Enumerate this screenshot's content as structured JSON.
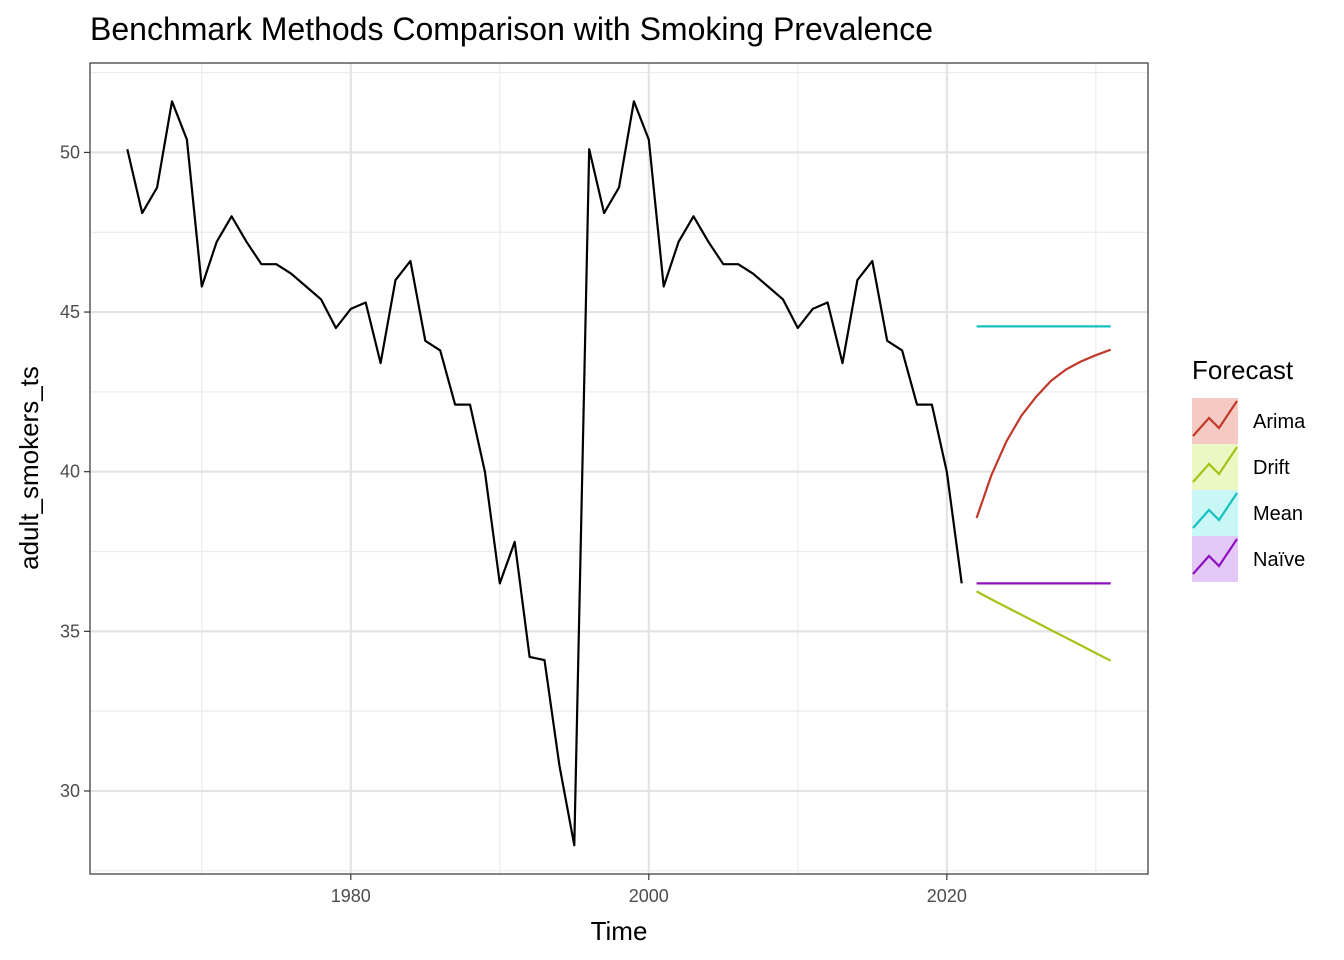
{
  "chart_data": {
    "type": "line",
    "title": "Benchmark Methods Comparison with Smoking Prevalence",
    "xlabel": "Time",
    "ylabel": "adult_smokers_ts",
    "xlim": [
      1962.5,
      2033.5
    ],
    "ylim": [
      27.4,
      52.8
    ],
    "x_ticks": [
      1980,
      2000,
      2020
    ],
    "y_ticks": [
      30,
      35,
      40,
      45,
      50
    ],
    "grid": true,
    "legend_position": "right",
    "legend_title": "Forecast",
    "observed": {
      "x": [
        1965,
        1966,
        1967,
        1968,
        1969,
        1970,
        1971,
        1972,
        1973,
        1974,
        1975,
        1976,
        1977,
        1978,
        1979,
        1980,
        1981,
        1982,
        1983,
        1984,
        1985,
        1986,
        1987,
        1988,
        1989,
        1990,
        1991,
        1992,
        1993,
        1994,
        1995,
        1996,
        1997,
        1998,
        1999,
        2000,
        2001,
        2002,
        2003,
        2004,
        2005,
        2006,
        2007,
        2008,
        2009,
        2010,
        2011,
        2012,
        2013,
        2014,
        2015,
        2016,
        2017,
        2018,
        2019,
        2020,
        2021
      ],
      "y": [
        50.1,
        48.1,
        48.9,
        51.6,
        50.4,
        45.8,
        47.2,
        48.0,
        47.2,
        46.5,
        46.5,
        46.2,
        45.8,
        45.4,
        44.5,
        45.1,
        45.3,
        43.4,
        46.0,
        46.6,
        44.1,
        43.8,
        42.1,
        42.1,
        40.0,
        36.5,
        37.8,
        34.2,
        34.1,
        30.8,
        28.3,
        50.1,
        48.1,
        48.9,
        51.6,
        50.4,
        45.8,
        47.2,
        48.0,
        47.2,
        46.5,
        46.5,
        46.2,
        45.8,
        45.4,
        44.5,
        45.1,
        45.3,
        43.4,
        46.0,
        46.6,
        44.1,
        43.8,
        42.1,
        42.1,
        40.0,
        36.5
      ]
    },
    "series": [
      {
        "name": "Arima",
        "color": "#c0392b",
        "x": [
          2022,
          2023,
          2024,
          2025,
          2026,
          2027,
          2028,
          2029,
          2030,
          2031
        ],
        "y": [
          38.55,
          39.9,
          40.95,
          41.75,
          42.35,
          42.85,
          43.2,
          43.45,
          43.65,
          43.82
        ]
      },
      {
        "name": "Drift",
        "color": "#a3c416",
        "x": [
          2022,
          2023,
          2024,
          2025,
          2026,
          2027,
          2028,
          2029,
          2030,
          2031
        ],
        "y": [
          36.25,
          36.0,
          35.76,
          35.52,
          35.28,
          35.04,
          34.8,
          34.56,
          34.32,
          34.08
        ]
      },
      {
        "name": "Mean",
        "color": "#17bfbf",
        "x": [
          2022,
          2023,
          2024,
          2025,
          2026,
          2027,
          2028,
          2029,
          2030,
          2031
        ],
        "y": [
          44.55,
          44.55,
          44.55,
          44.55,
          44.55,
          44.55,
          44.55,
          44.55,
          44.55,
          44.55
        ]
      },
      {
        "name": "Naïve",
        "color": "#8e10c0",
        "x": [
          2022,
          2023,
          2024,
          2025,
          2026,
          2027,
          2028,
          2029,
          2030,
          2031
        ],
        "y": [
          36.5,
          36.5,
          36.5,
          36.5,
          36.5,
          36.5,
          36.5,
          36.5,
          36.5,
          36.5
        ]
      }
    ],
    "legend_fills": [
      "#f5cac3",
      "#ebf8c4",
      "#c8f7f6",
      "#e4c8f8"
    ]
  }
}
